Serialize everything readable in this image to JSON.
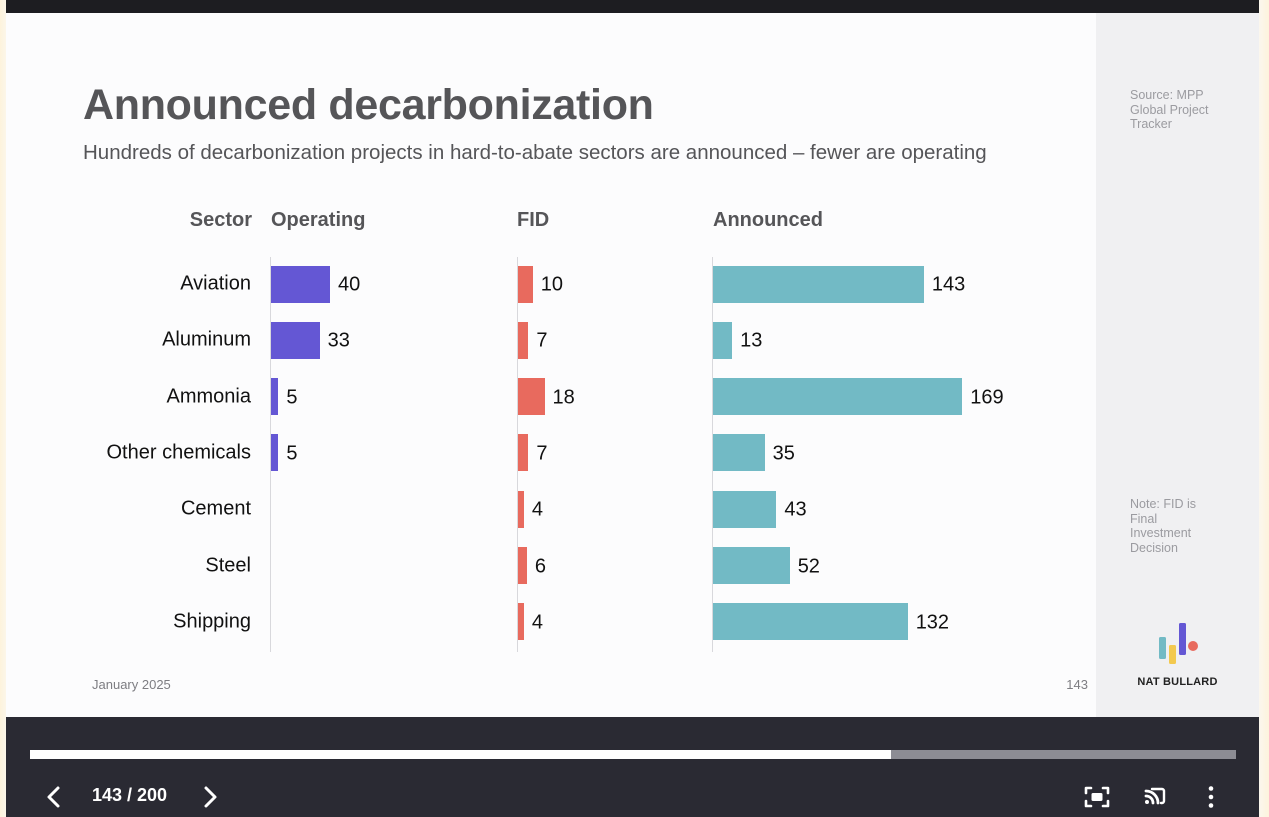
{
  "slide": {
    "title": "Announced decarbonization",
    "subtitle": "Hundreds of decarbonization projects in hard-to-abate sectors are announced – fewer are operating",
    "date": "January 2025",
    "page_number": "143",
    "source": "Source: MPP Global Project Tracker",
    "note": "Note: FID is Final Investment Decision",
    "brand": "NAT BULLARD"
  },
  "chart_data": {
    "type": "bar",
    "orientation": "horizontal",
    "category_header": "Sector",
    "categories": [
      "Aviation",
      "Aluminum",
      "Ammonia",
      "Other chemicals",
      "Cement",
      "Steel",
      "Shipping"
    ],
    "series": [
      {
        "name": "Operating",
        "color": "#6457d4",
        "values": [
          40,
          33,
          5,
          5,
          null,
          null,
          null
        ]
      },
      {
        "name": "FID",
        "color": "#e86a5e",
        "values": [
          10,
          7,
          18,
          7,
          4,
          6,
          4
        ]
      },
      {
        "name": "Announced",
        "color": "#72bac5",
        "values": [
          143,
          13,
          169,
          35,
          43,
          52,
          132
        ]
      }
    ]
  },
  "player": {
    "page_counter": "143 / 200",
    "current_page": 143,
    "total_pages": 200,
    "progress_fraction": 0.714,
    "icons": {
      "prev": "chevron-left-icon",
      "next": "chevron-right-icon",
      "fullscreen": "fullscreen-icon",
      "cast": "cast-icon",
      "more": "more-vertical-icon"
    }
  }
}
